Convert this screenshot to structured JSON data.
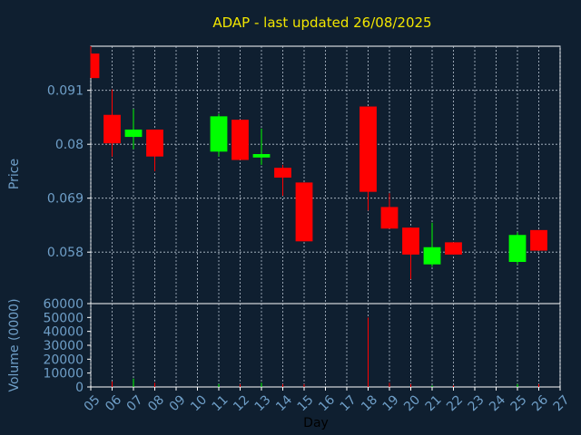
{
  "chart_data": {
    "type": "candlestick",
    "title": "ADAP - last updated 26/08/2025",
    "xlabel": "Day",
    "grid": true,
    "x_ticks": [
      "05",
      "06",
      "07",
      "08",
      "09",
      "10",
      "11",
      "12",
      "13",
      "14",
      "15",
      "16",
      "17",
      "18",
      "19",
      "20",
      "21",
      "22",
      "23",
      "24",
      "25",
      "26",
      "27"
    ],
    "colors": {
      "up": "#00ff00",
      "down": "#ff0000",
      "background": "#0f1f30",
      "title": "#f2e600",
      "axis_text": "#6f9fc8",
      "axis_line": "#ffffff"
    },
    "price": {
      "ylabel": "Price",
      "ylim": [
        0.0475,
        0.1
      ],
      "y_ticks": [
        0.058,
        0.069,
        0.08,
        0.091
      ],
      "y_tick_labels": [
        "0.058",
        "0.069",
        "0.08",
        "0.091"
      ]
    },
    "volume": {
      "ylabel": "Volume (0000)",
      "ylim": [
        0,
        60000
      ],
      "y_ticks": [
        0,
        10000,
        20000,
        30000,
        40000,
        50000,
        60000
      ],
      "y_tick_labels": [
        "0",
        "10000",
        "20000",
        "30000",
        "40000",
        "50000",
        "60000"
      ]
    },
    "candles": [
      {
        "day": 5,
        "open": 0.0985,
        "close": 0.0935,
        "high": 0.1,
        "low": 0.0935,
        "volume": 0
      },
      {
        "day": 6,
        "open": 0.086,
        "close": 0.0802,
        "high": 0.0912,
        "low": 0.0775,
        "volume": 4000
      },
      {
        "day": 7,
        "open": 0.0815,
        "close": 0.083,
        "high": 0.0872,
        "low": 0.079,
        "volume": 6000
      },
      {
        "day": 8,
        "open": 0.083,
        "close": 0.0775,
        "high": 0.083,
        "low": 0.0745,
        "volume": 3000
      },
      {
        "day": 11,
        "open": 0.0785,
        "close": 0.0857,
        "high": 0.0862,
        "low": 0.0775,
        "volume": 2000
      },
      {
        "day": 12,
        "open": 0.085,
        "close": 0.0768,
        "high": 0.085,
        "low": 0.0768,
        "volume": 2000
      },
      {
        "day": 13,
        "open": 0.0773,
        "close": 0.078,
        "high": 0.0832,
        "low": 0.0758,
        "volume": 3000
      },
      {
        "day": 14,
        "open": 0.0752,
        "close": 0.0732,
        "high": 0.0758,
        "low": 0.0695,
        "volume": 2000
      },
      {
        "day": 15,
        "open": 0.0722,
        "close": 0.0602,
        "high": 0.0722,
        "low": 0.0602,
        "volume": 2000
      },
      {
        "day": 18,
        "open": 0.0877,
        "close": 0.0703,
        "high": 0.0877,
        "low": 0.0665,
        "volume": 50000
      },
      {
        "day": 19,
        "open": 0.0672,
        "close": 0.0628,
        "high": 0.07,
        "low": 0.0628,
        "volume": 3000
      },
      {
        "day": 20,
        "open": 0.063,
        "close": 0.0575,
        "high": 0.063,
        "low": 0.0525,
        "volume": 2000
      },
      {
        "day": 21,
        "open": 0.0555,
        "close": 0.059,
        "high": 0.064,
        "low": 0.055,
        "volume": 1000
      },
      {
        "day": 22,
        "open": 0.06,
        "close": 0.0575,
        "high": 0.06,
        "low": 0.0575,
        "volume": 1000
      },
      {
        "day": 25,
        "open": 0.056,
        "close": 0.0615,
        "high": 0.062,
        "low": 0.0555,
        "volume": 2000
      },
      {
        "day": 26,
        "open": 0.0625,
        "close": 0.0583,
        "high": 0.0625,
        "low": 0.0583,
        "volume": 2000
      }
    ]
  }
}
